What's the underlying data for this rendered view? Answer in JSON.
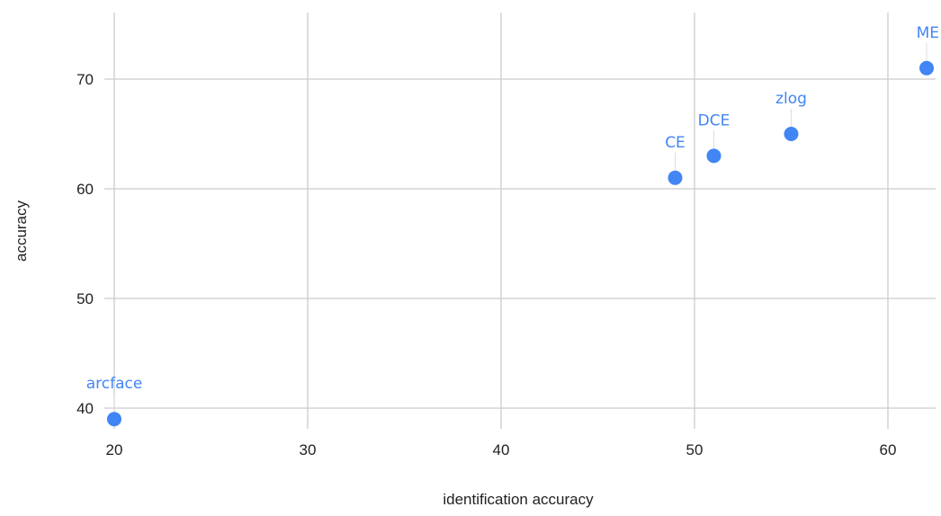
{
  "chart_data": {
    "type": "scatter",
    "title": "",
    "xlabel": "identification accuracy",
    "ylabel": "accuracy",
    "xlim": [
      20,
      62.5
    ],
    "ylim": [
      38.5,
      76
    ],
    "x_ticks": [
      20,
      30,
      40,
      50,
      60
    ],
    "y_ticks": [
      40,
      50,
      60,
      70
    ],
    "grid": true,
    "point_color": "#4285f4",
    "series": [
      {
        "points": [
          {
            "label": "arcface",
            "x": 20,
            "y": 39
          },
          {
            "label": "CE",
            "x": 49,
            "y": 61
          },
          {
            "label": "DCE",
            "x": 51,
            "y": 63
          },
          {
            "label": "zlog",
            "x": 55,
            "y": 65
          },
          {
            "label": "ME",
            "x": 62,
            "y": 71
          }
        ]
      }
    ]
  }
}
